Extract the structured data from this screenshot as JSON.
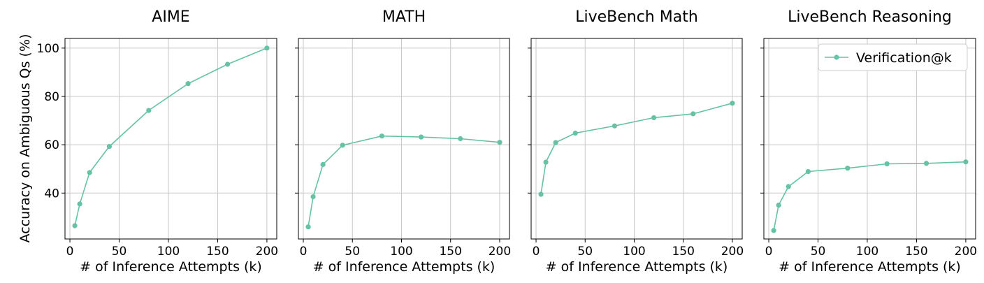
{
  "figure": {
    "ylabel": "Accuracy on Ambiguous Qs (%)",
    "series_color": "#66c2a5",
    "legend": {
      "label": "Verification@k",
      "placement": "upper right of fourth panel"
    }
  },
  "chart_data": [
    {
      "type": "line",
      "title": "AIME",
      "xlabel": "# of Inference Attempts (k)",
      "ylabel": "Accuracy on Ambiguous Qs (%)",
      "xlim": [
        -5,
        210
      ],
      "ylim": [
        21,
        104
      ],
      "xticks": [
        0,
        50,
        100,
        150,
        200
      ],
      "yticks": [
        40,
        60,
        80,
        100
      ],
      "grid": true,
      "series": [
        {
          "name": "Verification@k",
          "x": [
            5,
            10,
            20,
            40,
            80,
            120,
            160,
            200
          ],
          "y": [
            26.5,
            35.5,
            48.5,
            59.3,
            74.2,
            85.3,
            93.3,
            100
          ]
        }
      ]
    },
    {
      "type": "line",
      "title": "MATH",
      "xlabel": "# of Inference Attempts (k)",
      "xlim": [
        -5,
        210
      ],
      "ylim": [
        21,
        104
      ],
      "xticks": [
        0,
        50,
        100,
        150,
        200
      ],
      "yticks": [
        40,
        60,
        80,
        100
      ],
      "grid": true,
      "series": [
        {
          "name": "Verification@k",
          "x": [
            5,
            10,
            20,
            40,
            80,
            120,
            160,
            200
          ],
          "y": [
            26.0,
            38.5,
            51.8,
            59.8,
            63.6,
            63.2,
            62.5,
            61.0
          ]
        }
      ]
    },
    {
      "type": "line",
      "title": "LiveBench Math",
      "xlabel": "# of Inference Attempts (k)",
      "xlim": [
        -5,
        210
      ],
      "ylim": [
        21,
        104
      ],
      "xticks": [
        0,
        50,
        100,
        150,
        200
      ],
      "yticks": [
        40,
        60,
        80,
        100
      ],
      "grid": true,
      "series": [
        {
          "name": "Verification@k",
          "x": [
            5,
            10,
            20,
            40,
            80,
            120,
            160,
            200
          ],
          "y": [
            39.5,
            52.8,
            60.9,
            64.8,
            67.8,
            71.2,
            72.8,
            77.2
          ]
        }
      ]
    },
    {
      "type": "line",
      "title": "LiveBench Reasoning",
      "xlabel": "# of Inference Attempts (k)",
      "xlim": [
        -5,
        210
      ],
      "ylim": [
        21,
        104
      ],
      "xticks": [
        0,
        50,
        100,
        150,
        200
      ],
      "yticks": [
        40,
        60,
        80,
        100
      ],
      "grid": true,
      "legend": "top-right",
      "series": [
        {
          "name": "Verification@k",
          "x": [
            5,
            10,
            20,
            40,
            80,
            120,
            160,
            200
          ],
          "y": [
            24.5,
            35.0,
            42.7,
            48.9,
            50.3,
            52.1,
            52.3,
            52.9
          ]
        }
      ]
    }
  ]
}
